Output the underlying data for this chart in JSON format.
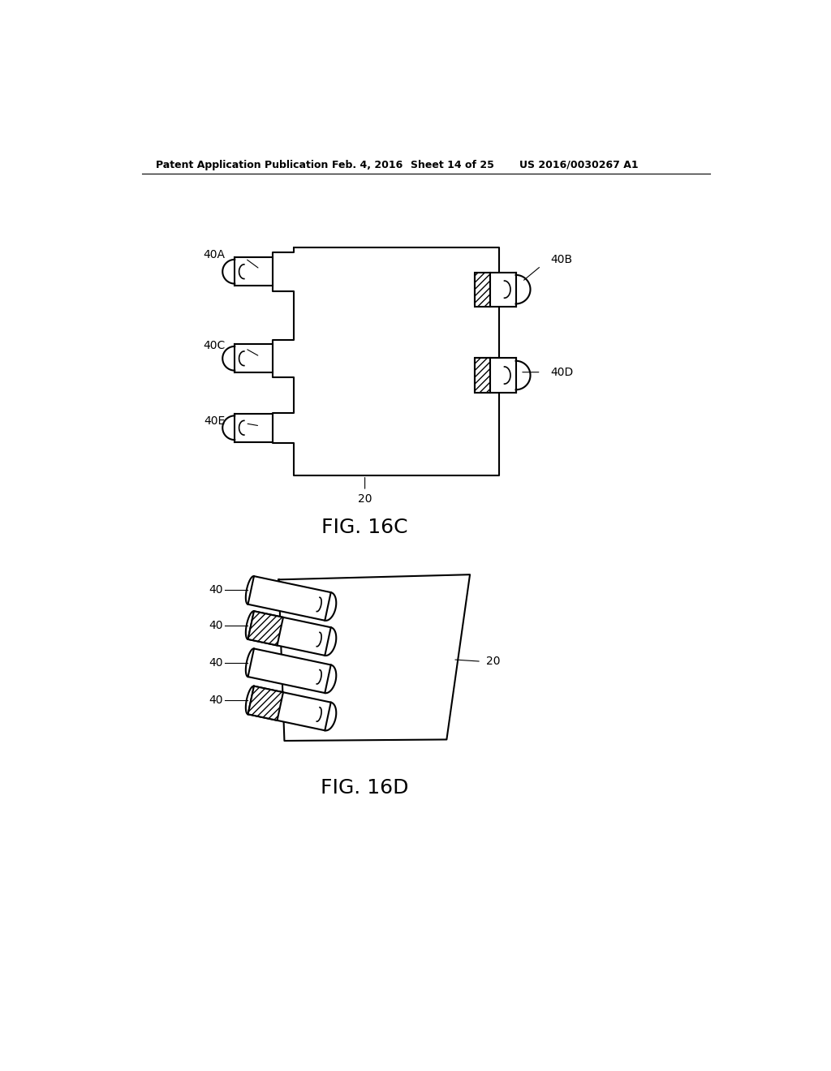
{
  "background_color": "#ffffff",
  "header_text": "Patent Application Publication",
  "header_date": "Feb. 4, 2016",
  "header_sheet": "Sheet 14 of 25",
  "header_patent": "US 2016/0030267 A1",
  "fig_16c_label": "FIG. 16C",
  "fig_16d_label": "FIG. 16D",
  "line_color": "#000000",
  "line_width": 1.5,
  "header_fontsize": 9,
  "fig_label_fontsize": 18,
  "annot_fontsize": 10
}
